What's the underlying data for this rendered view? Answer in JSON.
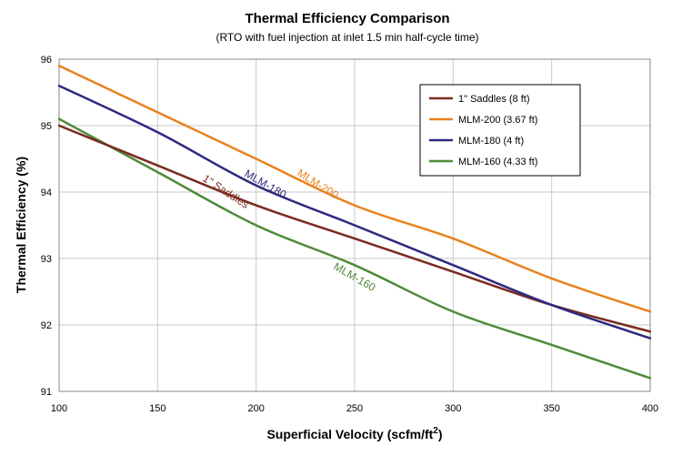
{
  "chart_data": {
    "type": "line",
    "title": "Thermal Efficiency Comparison",
    "subtitle": "(RTO with fuel injection at inlet 1.5 min half-cycle time)",
    "xlabel": "Superficial Velocity (scfm/ft",
    "xlabel_sup": "2",
    "xlabel_end": ")",
    "ylabel": "Thermal Efficiency (%)",
    "xlim": [
      100,
      400
    ],
    "ylim": [
      91,
      96
    ],
    "xticks": [
      100,
      150,
      200,
      250,
      300,
      350,
      400
    ],
    "yticks": [
      91,
      92,
      93,
      94,
      95,
      96
    ],
    "grid": true,
    "legend_position": "top-right",
    "series": [
      {
        "name": "1\" Saddles (8 ft)",
        "color": "#7b2b1f",
        "annotation": "1\" Saddles",
        "x": [
          100,
          150,
          200,
          250,
          300,
          350,
          400
        ],
        "y": [
          95.0,
          94.4,
          93.8,
          93.3,
          92.8,
          92.3,
          91.9
        ]
      },
      {
        "name": "MLM-200 (3.67 ft)",
        "color": "#e8821e",
        "annotation": "MLM-200",
        "x": [
          100,
          150,
          200,
          250,
          300,
          350,
          400
        ],
        "y": [
          95.9,
          95.2,
          94.5,
          93.8,
          93.3,
          92.7,
          92.2
        ]
      },
      {
        "name": "MLM-180 (4 ft)",
        "color": "#2e2a7e",
        "annotation": "MLM-180",
        "x": [
          100,
          150,
          200,
          250,
          300,
          350,
          400
        ],
        "y": [
          95.6,
          94.9,
          94.1,
          93.5,
          92.9,
          92.3,
          91.8
        ]
      },
      {
        "name": "MLM-160 (4.33 ft)",
        "color": "#4f8a3a",
        "annotation": "MLM-160",
        "x": [
          100,
          150,
          200,
          250,
          300,
          350,
          400
        ],
        "y": [
          95.1,
          94.3,
          93.5,
          92.9,
          92.2,
          91.7,
          91.2
        ]
      }
    ]
  }
}
